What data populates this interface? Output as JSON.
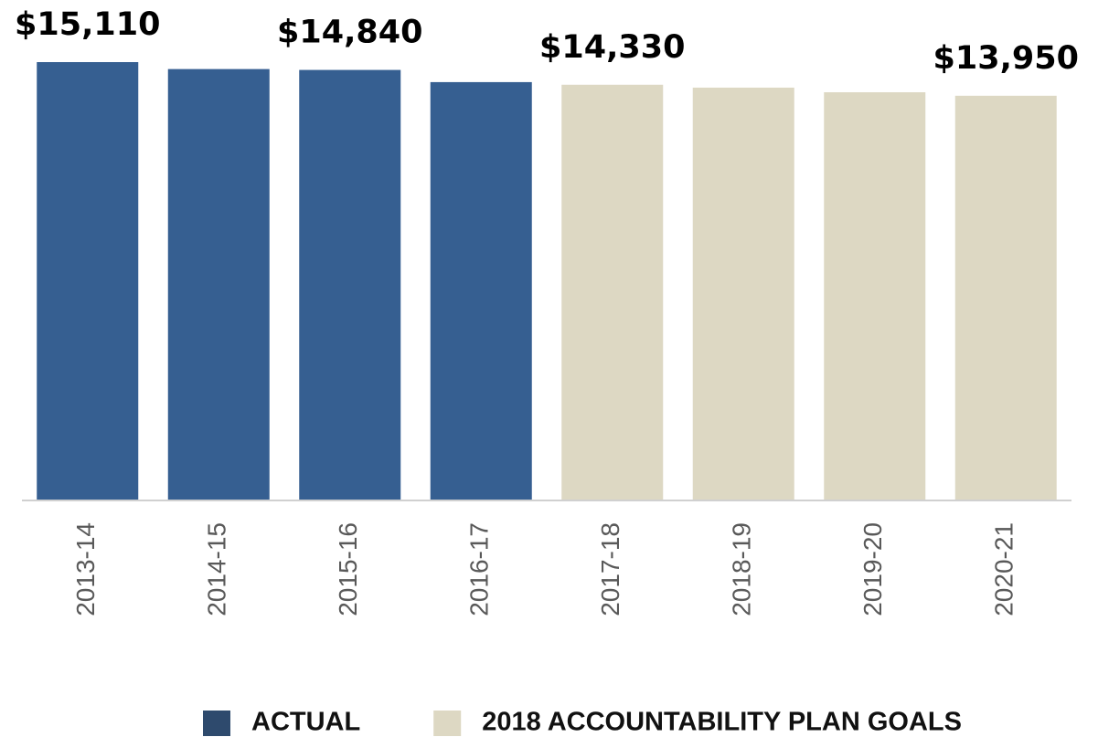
{
  "chart_data": {
    "type": "bar",
    "categories": [
      "2013-14",
      "2014-15",
      "2015-16",
      "2016-17",
      "2017-18",
      "2018-19",
      "2019-20",
      "2020-21"
    ],
    "series": [
      {
        "name": "ACTUAL",
        "color": "#365f91",
        "values": [
          15110,
          14870,
          14840,
          14420,
          null,
          null,
          null,
          null
        ],
        "value_labels": [
          "$15,110",
          null,
          "$14,840",
          null,
          null,
          null,
          null,
          null
        ]
      },
      {
        "name": "2018 ACCOUNTABILITY PLAN GOALS",
        "color": "#ddd8c3",
        "values": [
          null,
          null,
          null,
          null,
          14330,
          14230,
          14070,
          13950
        ],
        "value_labels": [
          null,
          null,
          null,
          null,
          "$14,330",
          null,
          null,
          "$13,950"
        ]
      }
    ],
    "ylim": [
      0,
      15110
    ],
    "legend": "bottom"
  }
}
